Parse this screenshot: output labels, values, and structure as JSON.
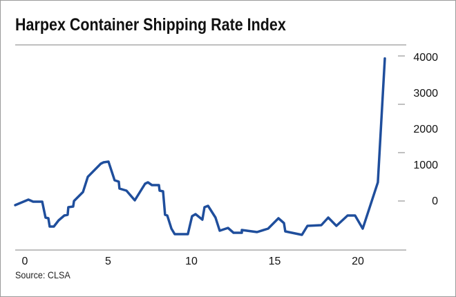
{
  "chart_data": {
    "type": "line",
    "title": "Harpex Container Shipping Rate Index",
    "source": "Source: CLSA",
    "xlabel": "",
    "ylabel": "",
    "xlim": [
      -0.6,
      22.6
    ],
    "ylim": [
      -1400,
      4400
    ],
    "x_ticks": [
      "0",
      "5",
      "10",
      "15",
      "20"
    ],
    "x_tick_values": [
      0,
      5,
      10,
      15,
      20
    ],
    "y_ticks": [
      "4000",
      "3000",
      "2000",
      "1000",
      "0"
    ],
    "y_tick_values": [
      4000,
      3000,
      2000,
      1000,
      0
    ],
    "grid": false,
    "line_color": "#1f4e9c",
    "series": [
      {
        "name": "Harpex",
        "x": [
          -0.58,
          0.21,
          0.5,
          1.04,
          1.24,
          1.41,
          1.49,
          1.74,
          2.03,
          2.37,
          2.57,
          2.61,
          2.9,
          2.95,
          3.49,
          3.78,
          4.56,
          4.73,
          5.02,
          5.39,
          5.64,
          5.68,
          6.1,
          6.6,
          7.22,
          7.39,
          7.63,
          8.05,
          8.09,
          8.3,
          8.42,
          8.55,
          8.8,
          9.0,
          9.79,
          10.04,
          10.25,
          10.66,
          10.79,
          11.0,
          11.45,
          11.7,
          12.2,
          12.53,
          13.03,
          13.03,
          13.94,
          14.61,
          15.23,
          15.56,
          15.64,
          16.64,
          16.97,
          17.8,
          18.22,
          18.71,
          19.38,
          19.83,
          20.29,
          21.2,
          21.62
        ],
        "values": [
          -135,
          19,
          -38,
          -38,
          -481,
          -500,
          -731,
          -731,
          -558,
          -423,
          -404,
          -192,
          -173,
          -19,
          231,
          654,
          1019,
          1058,
          1077,
          558,
          519,
          327,
          269,
          0,
          462,
          500,
          423,
          423,
          269,
          250,
          -404,
          -423,
          -788,
          -942,
          -942,
          -442,
          -385,
          -538,
          -192,
          -154,
          -481,
          -846,
          -769,
          -904,
          -904,
          -827,
          -885,
          -788,
          -500,
          -635,
          -865,
          -962,
          -712,
          -692,
          -481,
          -712,
          -423,
          -423,
          -788,
          500,
          3950
        ]
      }
    ]
  }
}
